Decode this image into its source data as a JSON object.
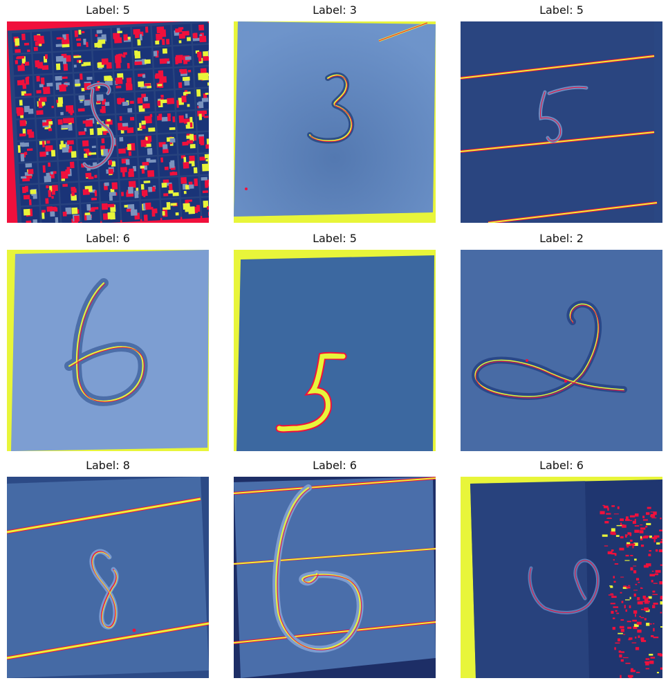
{
  "panels": [
    {
      "title": "Label: 5",
      "digit": "5",
      "scene": "grid-pattern",
      "colors": {
        "bg": "#f0103c",
        "paper": "#1a3a7a",
        "accent": "#e8f53a",
        "stroke": "#f0103c"
      }
    },
    {
      "title": "Label: 3",
      "digit": "3",
      "scene": "light-paper",
      "colors": {
        "bg": "#e8f53a",
        "paper": "#6a8fc4",
        "accent": "#e8f53a",
        "stroke": "#f0103c"
      }
    },
    {
      "title": "Label: 5",
      "digit": "5",
      "scene": "ruled-dark",
      "colors": {
        "bg": "#1d2e66",
        "paper": "#2c4a86",
        "accent": "#e8f53a",
        "stroke": "#f0103c"
      }
    },
    {
      "title": "Label: 6",
      "digit": "6",
      "scene": "light-paper",
      "colors": {
        "bg": "#e8f53a",
        "paper": "#86a6d8",
        "accent": "#e8f53a",
        "stroke": "#f0103c"
      }
    },
    {
      "title": "Label: 5",
      "digit": "5",
      "scene": "flat-blue",
      "colors": {
        "bg": "#e8f53a",
        "paper": "#3c68a0",
        "accent": "#e8f53a",
        "stroke": "#f0103c"
      }
    },
    {
      "title": "Label: 2",
      "digit": "2",
      "scene": "medium-paper",
      "colors": {
        "bg": "#3a5c94",
        "paper": "#5074b0",
        "accent": "#e8f53a",
        "stroke": "#f0103c"
      }
    },
    {
      "title": "Label: 8",
      "digit": "8",
      "scene": "ruled-textured",
      "colors": {
        "bg": "#2c4a86",
        "paper": "#4e74b0",
        "accent": "#e8f53a",
        "stroke": "#f0103c"
      }
    },
    {
      "title": "Label: 6",
      "digit": "6",
      "scene": "ruled-medium",
      "colors": {
        "bg": "#1d2e66",
        "paper": "#4a6eaa",
        "accent": "#e8f53a",
        "stroke": "#f0103c"
      }
    },
    {
      "title": "Label: 6",
      "digit": "6",
      "scene": "dark-noise",
      "colors": {
        "bg": "#e8f53a",
        "paper": "#1f3670",
        "accent": "#e8f53a",
        "stroke": "#f0103c"
      }
    }
  ]
}
